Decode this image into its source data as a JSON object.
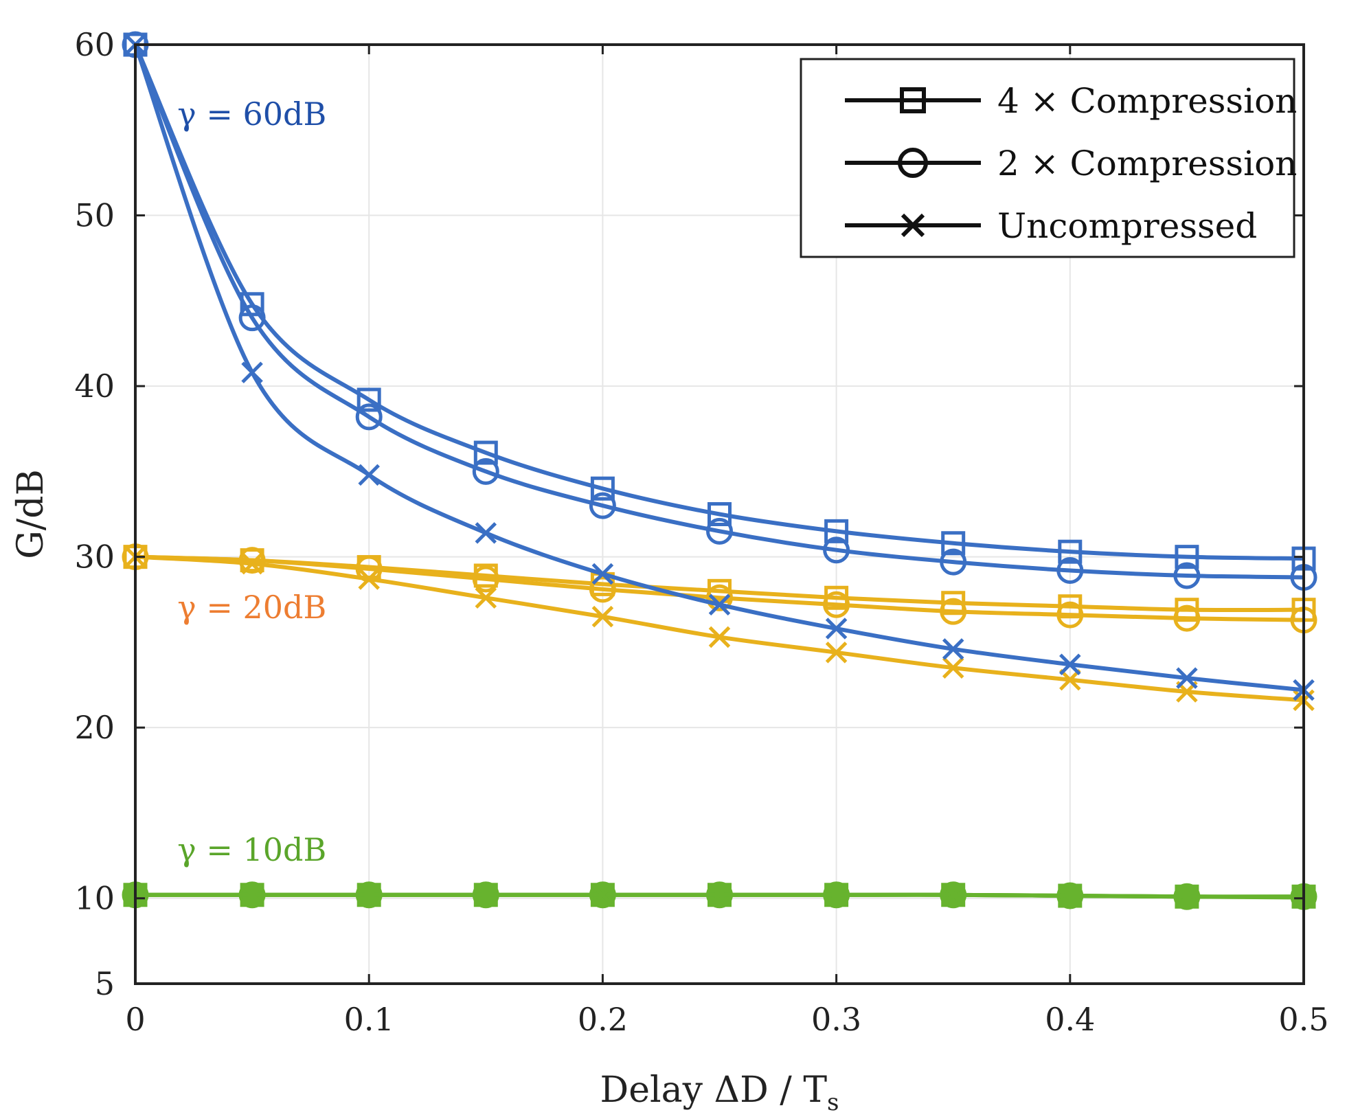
{
  "chart_data": {
    "type": "line",
    "title": "",
    "xlabel": "Delay ΔD / T",
    "xlabel_subscript": "s",
    "ylabel": "G/dB",
    "xlim": [
      0,
      0.5
    ],
    "ylim": [
      5,
      60
    ],
    "xticks": [
      0,
      0.1,
      0.2,
      0.3,
      0.4,
      0.5
    ],
    "xtick_labels": [
      "0",
      "0.1",
      "0.2",
      "0.3",
      "0.4",
      "0.5"
    ],
    "yticks": [
      5,
      10,
      20,
      30,
      40,
      50,
      60
    ],
    "ytick_labels": [
      "5",
      "10",
      "20",
      "30",
      "40",
      "50",
      "60"
    ],
    "grid": true,
    "x": [
      0,
      0.05,
      0.1,
      0.15,
      0.2,
      0.25,
      0.3,
      0.35,
      0.4,
      0.45,
      0.5
    ],
    "legend": {
      "position": "top-right",
      "entries": [
        {
          "label": "4 × Compression",
          "marker": "square"
        },
        {
          "label": "2 × Compression",
          "marker": "circle"
        },
        {
          "label": "Uncompressed",
          "marker": "x"
        }
      ]
    },
    "annotations": [
      {
        "text": "γ = 60dB",
        "color": "#1f4fa8",
        "at": [
          0.018,
          55.3
        ]
      },
      {
        "text": "γ = 20dB",
        "color": "#ed7d31",
        "at": [
          0.018,
          26.4
        ]
      },
      {
        "text": "γ = 10dB",
        "color": "#5aa52a",
        "at": [
          0.018,
          12.2
        ]
      }
    ],
    "series": [
      {
        "name": "γ = 60dB, 4 × Compression",
        "group": "60dB",
        "marker": "square",
        "color": "#3a6fc4",
        "values": [
          60,
          44.8,
          39.2,
          36.1,
          34.0,
          32.5,
          31.5,
          30.8,
          30.3,
          30.0,
          29.9
        ]
      },
      {
        "name": "γ = 60dB, 2 × Compression",
        "group": "60dB",
        "marker": "circle",
        "color": "#3a6fc4",
        "values": [
          60,
          44.0,
          38.2,
          35.0,
          33.0,
          31.5,
          30.4,
          29.7,
          29.2,
          28.9,
          28.8
        ]
      },
      {
        "name": "γ = 60dB, Uncompressed",
        "group": "60dB",
        "marker": "x",
        "color": "#3a6fc4",
        "values": [
          60,
          40.8,
          34.8,
          31.4,
          29.0,
          27.2,
          25.8,
          24.6,
          23.7,
          22.9,
          22.2
        ]
      },
      {
        "name": "γ = 20dB, 4 × Compression",
        "group": "20dB",
        "marker": "square",
        "color": "#e8b11c",
        "values": [
          30,
          29.8,
          29.4,
          28.9,
          28.4,
          28.0,
          27.6,
          27.3,
          27.1,
          26.9,
          26.9
        ]
      },
      {
        "name": "γ = 20dB, 2 × Compression",
        "group": "20dB",
        "marker": "circle",
        "color": "#e8b11c",
        "values": [
          30,
          29.8,
          29.3,
          28.7,
          28.1,
          27.6,
          27.2,
          26.8,
          26.6,
          26.4,
          26.3
        ]
      },
      {
        "name": "γ = 20dB, Uncompressed",
        "group": "20dB",
        "marker": "x",
        "color": "#e8b11c",
        "values": [
          30,
          29.6,
          28.7,
          27.6,
          26.5,
          25.3,
          24.4,
          23.5,
          22.8,
          22.1,
          21.6
        ]
      },
      {
        "name": "γ = 10dB, 4 × Compression",
        "group": "10dB",
        "marker": "square",
        "color": "#67b32e",
        "values": [
          10.2,
          10.2,
          10.2,
          10.2,
          10.2,
          10.2,
          10.2,
          10.2,
          10.15,
          10.1,
          10.1
        ]
      },
      {
        "name": "γ = 10dB, 2 × Compression",
        "group": "10dB",
        "marker": "circle",
        "color": "#67b32e",
        "values": [
          10.2,
          10.2,
          10.2,
          10.2,
          10.2,
          10.2,
          10.2,
          10.2,
          10.15,
          10.1,
          10.1
        ]
      },
      {
        "name": "γ = 10dB, Uncompressed",
        "group": "10dB",
        "marker": "x",
        "color": "#67b32e",
        "values": [
          10.2,
          10.2,
          10.2,
          10.2,
          10.2,
          10.2,
          10.2,
          10.2,
          10.15,
          10.1,
          10.05
        ]
      }
    ]
  }
}
